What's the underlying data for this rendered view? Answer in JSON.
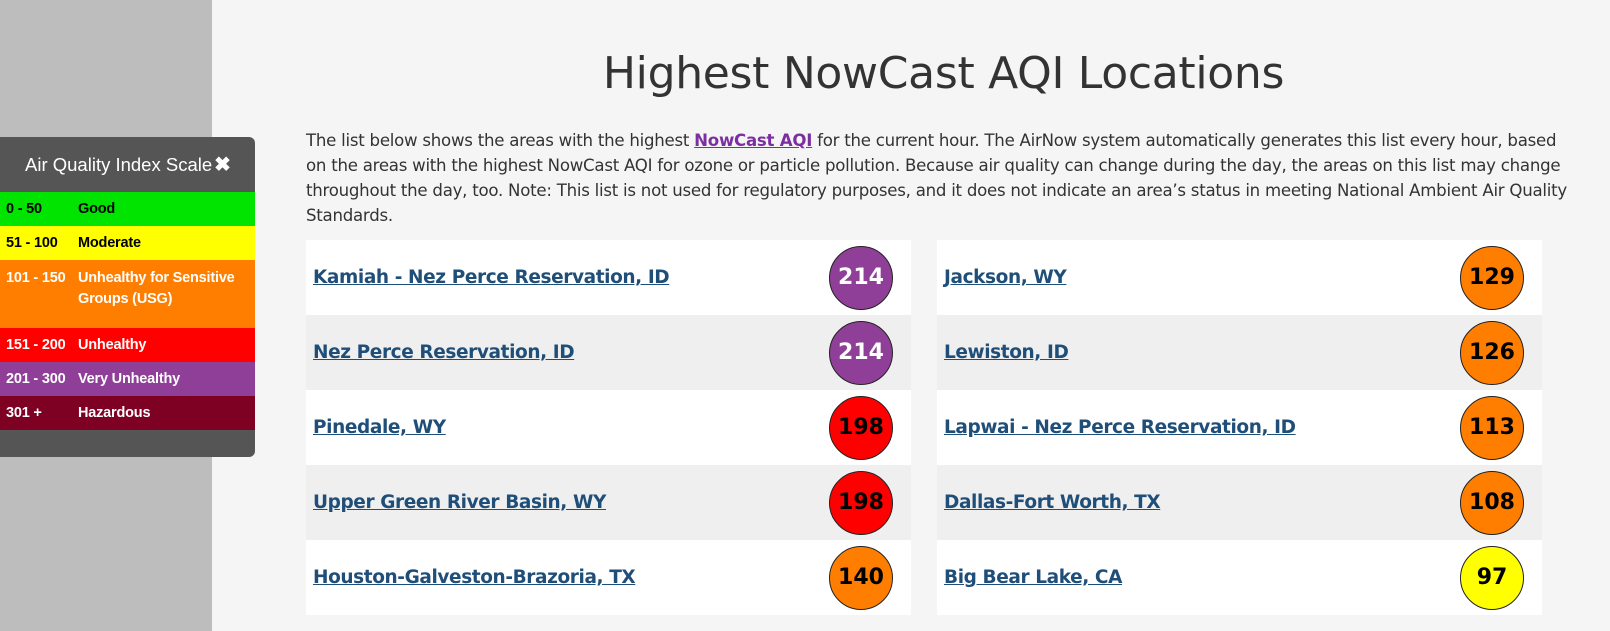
{
  "scale": {
    "title": "Air Quality Index Scale",
    "close_glyph": "✖",
    "rows": [
      {
        "range": "0 - 50",
        "category": "Good",
        "bg": "#00e400",
        "fg": "#000000"
      },
      {
        "range": "51 - 100",
        "category": "Moderate",
        "bg": "#ffff00",
        "fg": "#000000"
      },
      {
        "range": "101 - 150",
        "category": "Unhealthy for Sensitive Groups (USG)",
        "bg": "#ff7e00",
        "fg": "#ffffff"
      },
      {
        "range": "151 - 200",
        "category": "Unhealthy",
        "bg": "#ff0000",
        "fg": "#ffffff"
      },
      {
        "range": "201 - 300",
        "category": "Very Unhealthy",
        "bg": "#8f3f97",
        "fg": "#ffffff"
      },
      {
        "range": "301 +",
        "category": "Hazardous",
        "bg": "#7e0023",
        "fg": "#ffffff"
      }
    ]
  },
  "page": {
    "title": "Highest NowCast AQI Locations",
    "intro_before": "The list below shows the areas with the highest ",
    "intro_link": "NowCast AQI",
    "intro_after": " for the current hour. The AirNow system automatically generates this list every hour, based on the areas with the highest NowCast AQI for ozone or particle pollution. Because air quality can change during the day, the areas on this list may change throughout the day, too. Note: This list is not used for regulatory purposes, and it does not indicate an area’s status in meeting National Ambient Air Quality Standards."
  },
  "locations_left": [
    {
      "name": "Kamiah - Nez Perce Reservation, ID",
      "aqi": "214",
      "bg": "#8f3f97",
      "fg": "#ffffff"
    },
    {
      "name": "Nez Perce Reservation, ID",
      "aqi": "214",
      "bg": "#8f3f97",
      "fg": "#ffffff"
    },
    {
      "name": "Pinedale, WY",
      "aqi": "198",
      "bg": "#ff0000",
      "fg": "#000000"
    },
    {
      "name": "Upper Green River Basin, WY",
      "aqi": "198",
      "bg": "#ff0000",
      "fg": "#000000"
    },
    {
      "name": "Houston-Galveston-Brazoria, TX",
      "aqi": "140",
      "bg": "#ff7e00",
      "fg": "#000000"
    }
  ],
  "locations_right": [
    {
      "name": "Jackson, WY",
      "aqi": "129",
      "bg": "#ff7e00",
      "fg": "#000000"
    },
    {
      "name": "Lewiston, ID",
      "aqi": "126",
      "bg": "#ff7e00",
      "fg": "#000000"
    },
    {
      "name": "Lapwai - Nez Perce Reservation, ID",
      "aqi": "113",
      "bg": "#ff7e00",
      "fg": "#000000"
    },
    {
      "name": "Dallas-Fort Worth, TX",
      "aqi": "108",
      "bg": "#ff7e00",
      "fg": "#000000"
    },
    {
      "name": "Big Bear Lake, CA",
      "aqi": "97",
      "bg": "#ffff00",
      "fg": "#000000"
    }
  ]
}
